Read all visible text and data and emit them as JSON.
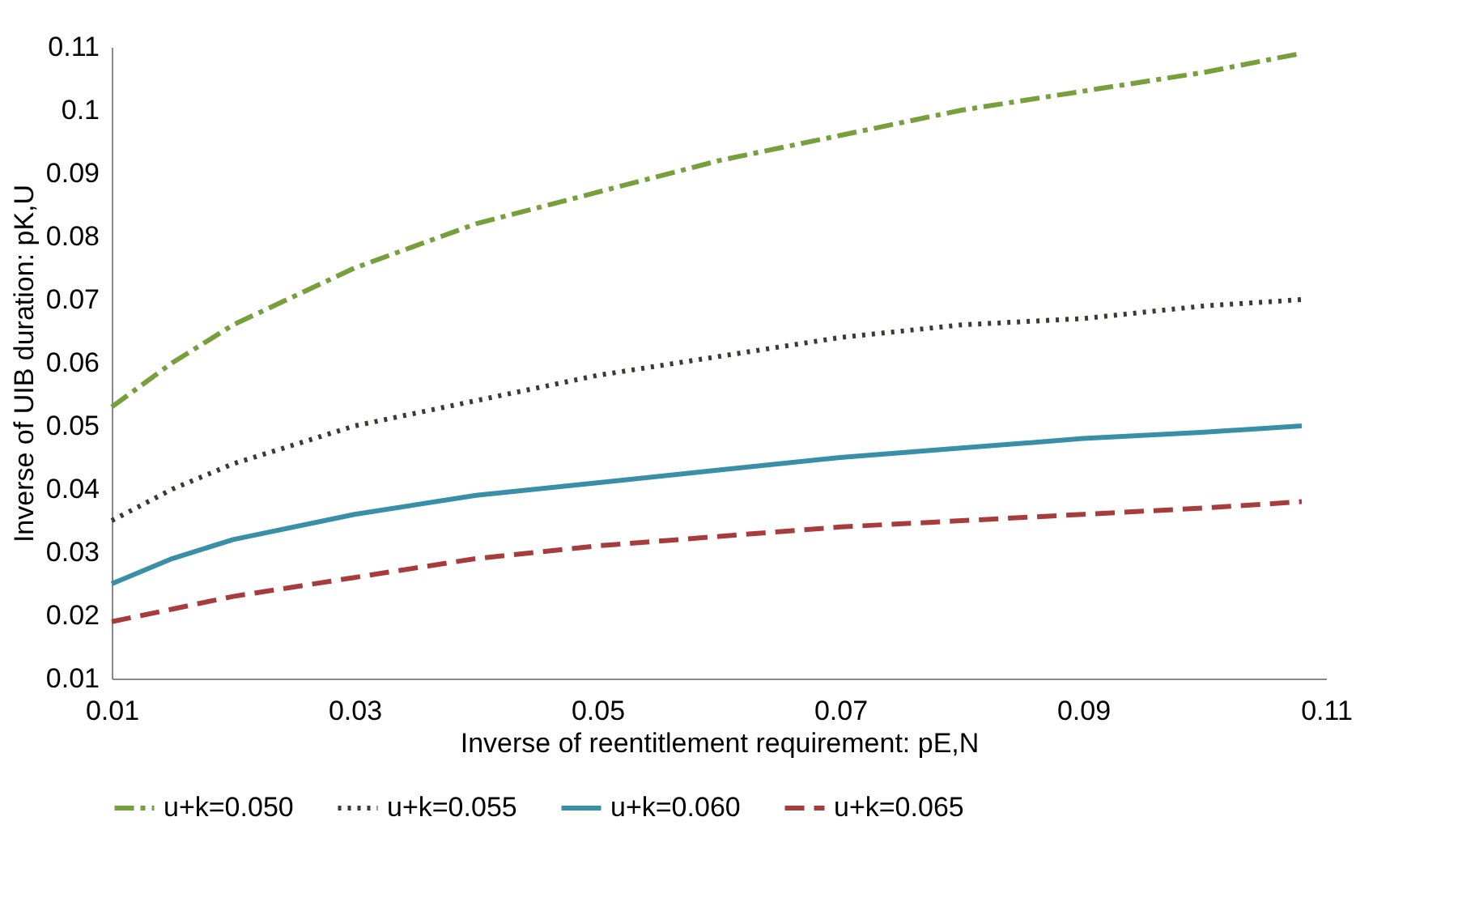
{
  "chart_data": {
    "type": "line",
    "xlabel": "Inverse of reentitlement requirement: pE,N",
    "ylabel": "Inverse of UIB duration: pK,U",
    "x": [
      0.01,
      0.015,
      0.02,
      0.03,
      0.04,
      0.05,
      0.06,
      0.07,
      0.08,
      0.09,
      0.1,
      0.108
    ],
    "series": [
      {
        "name": "u+k=0.050",
        "color": "#77a03c",
        "line_style": "dashdot",
        "values": [
          0.053,
          0.06,
          0.066,
          0.075,
          0.082,
          0.087,
          0.092,
          0.096,
          0.1,
          0.103,
          0.106,
          0.109
        ]
      },
      {
        "name": "u+k=0.055",
        "color": "#3a3a30",
        "line_style": "dotted",
        "values": [
          0.035,
          0.04,
          0.044,
          0.05,
          0.054,
          0.058,
          0.061,
          0.064,
          0.066,
          0.067,
          0.069,
          0.07
        ]
      },
      {
        "name": "u+k=0.060",
        "color": "#3a8fa8",
        "line_style": "solid",
        "values": [
          0.025,
          0.029,
          0.032,
          0.036,
          0.039,
          0.041,
          0.043,
          0.045,
          0.0465,
          0.048,
          0.049,
          0.05
        ]
      },
      {
        "name": "u+k=0.065",
        "color": "#a83c3c",
        "line_style": "dashed",
        "values": [
          0.019,
          0.021,
          0.023,
          0.026,
          0.029,
          0.031,
          0.0325,
          0.034,
          0.035,
          0.036,
          0.037,
          0.038
        ]
      }
    ],
    "xlim": [
      0.01,
      0.11
    ],
    "xticks": [
      0.01,
      0.03,
      0.05,
      0.07,
      0.09,
      0.11
    ],
    "ylim": [
      0.01,
      0.11
    ],
    "yticks": [
      0.01,
      0.02,
      0.03,
      0.04,
      0.05,
      0.06,
      0.07,
      0.08,
      0.09,
      0.1,
      0.11
    ],
    "grid": false,
    "legend": "bottom",
    "marker": "none"
  }
}
